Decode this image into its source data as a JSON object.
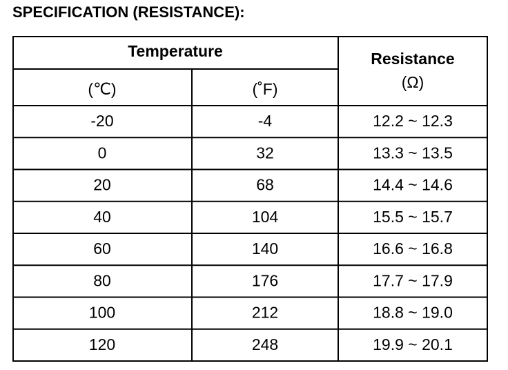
{
  "title": "SPECIFICATION (RESISTANCE):",
  "table": {
    "header": {
      "temperature": "Temperature",
      "celsius": "(℃)",
      "fahrenheit": "(˚F)",
      "resistance": "Resistance",
      "resistance_unit": "(Ω)"
    },
    "rows": [
      [
        "-20",
        "-4",
        "12.2 ~ 12.3"
      ],
      [
        "0",
        "32",
        "13.3 ~ 13.5"
      ],
      [
        "20",
        "68",
        "14.4 ~ 14.6"
      ],
      [
        "40",
        "104",
        "15.5 ~ 15.7"
      ],
      [
        "60",
        "140",
        "16.6 ~ 16.8"
      ],
      [
        "80",
        "176",
        "17.7 ~ 17.9"
      ],
      [
        "100",
        "212",
        "18.8 ~ 19.0"
      ],
      [
        "120",
        "248",
        "19.9 ~ 20.1"
      ]
    ]
  }
}
